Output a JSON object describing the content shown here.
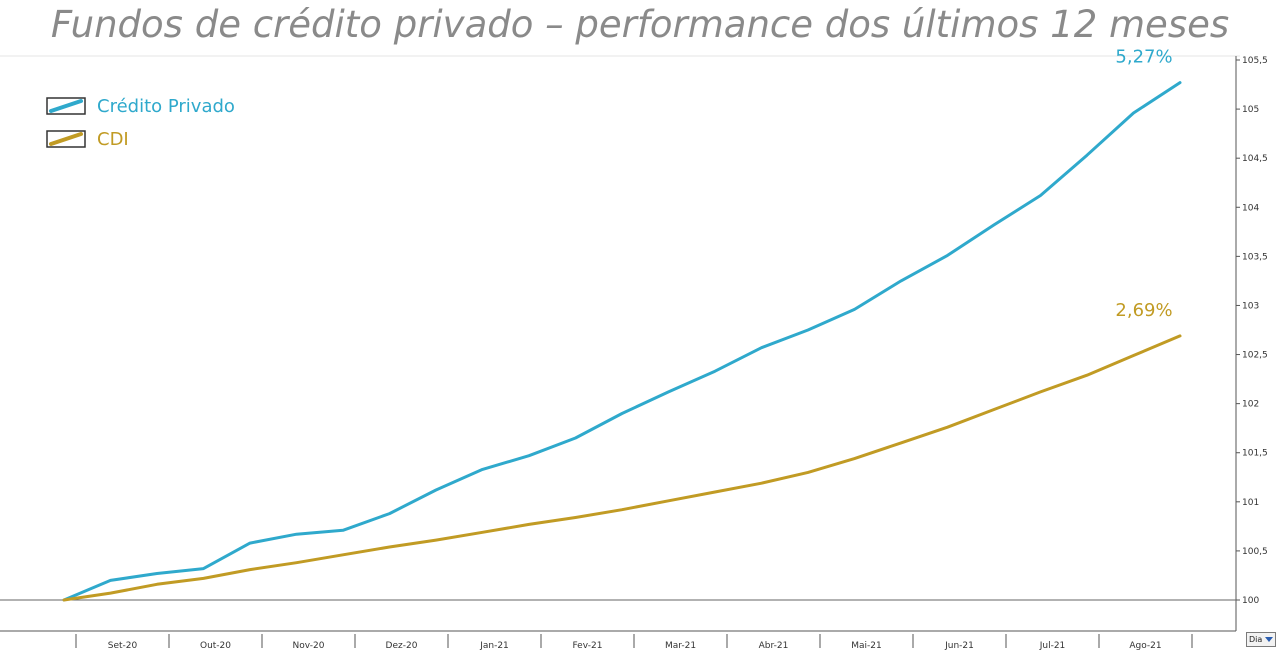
{
  "title": "Fundos de crédito privado – performance dos últimos 12 meses",
  "period_selector": {
    "value": "Dia"
  },
  "colors": {
    "credito_privado": "#2fa9cc",
    "cdi": "#c19b24",
    "axis": "#555555",
    "title": "#8a8a8a"
  },
  "chart_data": {
    "type": "line",
    "title": "Fundos de crédito privado – performance dos últimos 12 meses",
    "xlabel": "",
    "ylabel": "",
    "ylim": [
      100,
      105.5
    ],
    "grid": false,
    "legend_position": "top-left",
    "x_tick_labels": [
      "Set-20",
      "Out-20",
      "Nov-20",
      "Dez-20",
      "Jan-21",
      "Fev-21",
      "Mar-21",
      "Abr-21",
      "Mai-21",
      "Jun-21",
      "Jul-21",
      "Ago-21"
    ],
    "y_tick_labels": [
      "100",
      "100,5",
      "101",
      "101,5",
      "102",
      "102,5",
      "103",
      "103,5",
      "104",
      "104,5",
      "105",
      "105,5"
    ],
    "x": [
      0,
      0.5,
      1,
      1.5,
      2,
      2.5,
      3,
      3.5,
      4,
      4.5,
      5,
      5.5,
      6,
      6.5,
      7,
      7.5,
      8,
      8.5,
      9,
      9.5,
      10,
      10.5,
      11,
      11.5,
      12
    ],
    "series": [
      {
        "name": "Crédito Privado",
        "color": "#2fa9cc",
        "end_label": "5,27%",
        "values": [
          100.0,
          100.2,
          100.27,
          100.32,
          100.58,
          100.67,
          100.71,
          100.88,
          101.12,
          101.33,
          101.47,
          101.65,
          101.9,
          102.12,
          102.33,
          102.57,
          102.75,
          102.96,
          103.25,
          103.51,
          103.82,
          104.12,
          104.53,
          104.96,
          105.27
        ]
      },
      {
        "name": "CDI",
        "color": "#c19b24",
        "end_label": "2,69%",
        "values": [
          100.0,
          100.07,
          100.16,
          100.22,
          100.31,
          100.38,
          100.46,
          100.54,
          100.61,
          100.69,
          100.77,
          100.84,
          100.92,
          101.01,
          101.1,
          101.19,
          101.3,
          101.44,
          101.6,
          101.76,
          101.94,
          102.12,
          102.29,
          102.49,
          102.69
        ]
      }
    ]
  }
}
